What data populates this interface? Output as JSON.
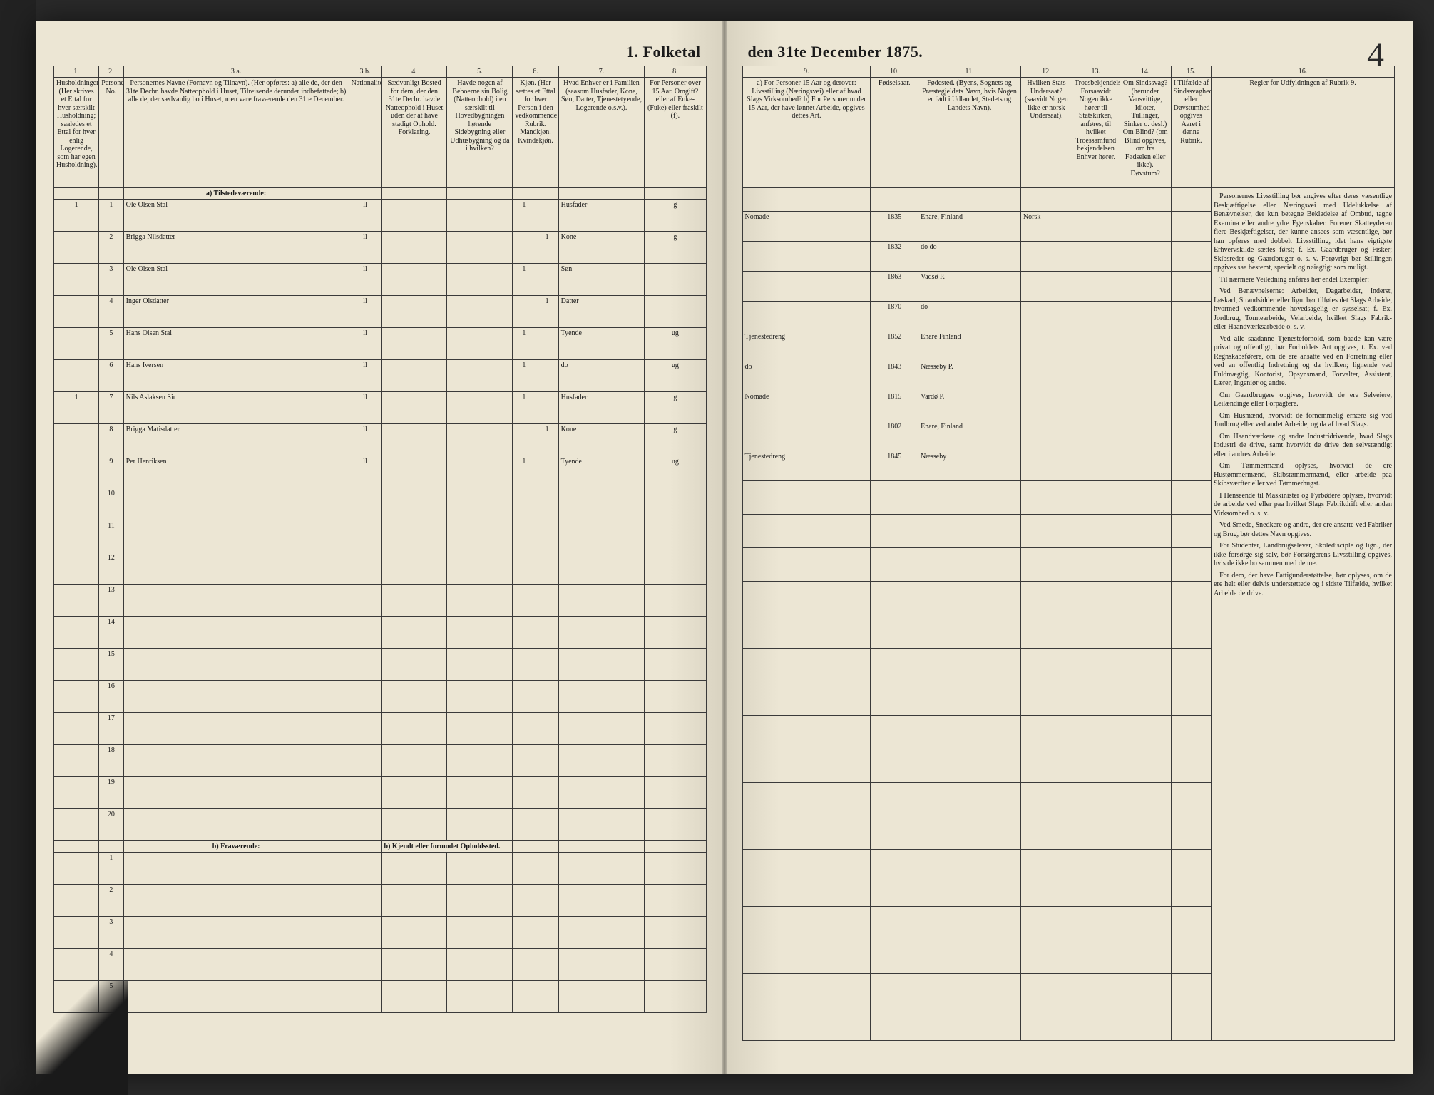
{
  "title_left": "1.  Folketal",
  "title_right": "den 31te December 1875.",
  "page_number": "4",
  "left_cols": {
    "nums": [
      "1.",
      "2.",
      "3 a.",
      "3 b.",
      "4.",
      "5.",
      "6.",
      "7.",
      "8."
    ],
    "heads": [
      "Husholdninger. (Her skrives et Ettal for hver særskilt Husholdning; saaledes et Ettal for hver enlig Logerende, som har egen Husholdning).",
      "Personernes No.",
      "Personernes Navne (Fornavn og Tilnavn). (Her opføres: a) alle de, der den 31te Decbr. havde Natteophold i Huset, Tilreisende derunder indbefattede; b) alle de, der sædvanlig bo i Huset, men vare fraværende den 31te December.",
      "Nationalitet.",
      "Sædvanligt Bosted for dem, der den 31te Decbr. havde Natteophold i Huset uden der at have stadigt Ophold. Forklaring.",
      "Havde nogen af Beboerne sin Bolig (Natteophold) i en særskilt til Hovedbygningen hørende Sidebygning eller Udhusbygning og da i hvilken?",
      "Kjøn. (Her sættes et Ettal for hver Person i den vedkommende Rubrik. Mandkjøn. Kvindekjøn.",
      "Hvad Enhver er i Familien (saasom Husfader, Kone, Søn, Datter, Tjenestetyende, Logerende o.s.v.).",
      "For Personer over 15 Aar. Omgift? eller af Enke- (Fuke) eller fraskilt (f)."
    ]
  },
  "right_cols": {
    "nums": [
      "9.",
      "10.",
      "11.",
      "12.",
      "13.",
      "14.",
      "15.",
      "16."
    ],
    "heads": [
      "a) For Personer 15 Aar og derover: Livsstilling (Næringsvei) eller af hvad Slags Virksomhed? b) For Personer under 15 Aar, der have lønnet Arbeide, opgives dettes Art.",
      "Fødselsaar.",
      "Fødested. (Byens, Sognets og Præstegjeldets Navn, hvis Nogen er født i Udlandet, Stedets og Landets Navn).",
      "Hvilken Stats Undersaat? (saavidt Nogen ikke er norsk Undersaat).",
      "Troesbekjendelse. Forsaavidt Nogen ikke hører til Statskirken, anføres, til hvilket Troessamfund bekjendelsen Enhver hører.",
      "Om Sindssvag? (herunder Vansvittige, Idioter, Tullinger, Sinker o. desl.) Om Blind? (om Blind opgives, om fra Fødselen eller ikke). Døvstum?",
      "I Tilfælde af Sindssvaghed eller Døvstumhed opgives Aaret i denne Rubrik.",
      "Regler for Udfyldningen af Rubrik 9."
    ]
  },
  "section_present": "a) Tilstedeværende:",
  "section_absent": "b) Fraværende:",
  "footnote_b": "b) Kjendt eller formodet Opholdssted.",
  "rows": [
    {
      "hh": "1",
      "no": "1",
      "name": "Ole Olsen Stal",
      "nat": "ll",
      "m": "1",
      "fam": "Husfader",
      "civ": "g",
      "occ": "Nomade",
      "year": "1835",
      "place": "Enare, Finland",
      "sub": "Norsk"
    },
    {
      "hh": "",
      "no": "2",
      "name": "Brigga Nilsdatter",
      "nat": "ll",
      "k": "1",
      "fam": "Kone",
      "civ": "g",
      "occ": "",
      "year": "1832",
      "place": "do   do",
      "sub": ""
    },
    {
      "hh": "",
      "no": "3",
      "name": "Ole Olsen Stal",
      "nat": "ll",
      "m": "1",
      "fam": "Søn",
      "civ": "",
      "occ": "",
      "year": "1863",
      "place": "Vadsø P.",
      "sub": ""
    },
    {
      "hh": "",
      "no": "4",
      "name": "Inger Olsdatter",
      "nat": "ll",
      "k": "1",
      "fam": "Datter",
      "civ": "",
      "occ": "",
      "year": "1870",
      "place": "do",
      "sub": ""
    },
    {
      "hh": "",
      "no": "5",
      "name": "Hans Olsen Stal",
      "nat": "ll",
      "m": "1",
      "fam": "Tyende",
      "civ": "ug",
      "occ": "Tjenestedreng",
      "year": "1852",
      "place": "Enare Finland",
      "sub": ""
    },
    {
      "hh": "",
      "no": "6",
      "name": "Hans Iversen",
      "nat": "ll",
      "m": "1",
      "fam": "do",
      "civ": "ug",
      "occ": "do",
      "year": "1843",
      "place": "Næsseby P.",
      "sub": ""
    },
    {
      "hh": "1",
      "no": "7",
      "name": "Nils Aslaksen Sir",
      "nat": "ll",
      "m": "1",
      "fam": "Husfader",
      "civ": "g",
      "occ": "Nomade",
      "year": "1815",
      "place": "Vardø P.",
      "sub": ""
    },
    {
      "hh": "",
      "no": "8",
      "name": "Brigga Matisdatter",
      "nat": "ll",
      "k": "1",
      "fam": "Kone",
      "civ": "g",
      "occ": "",
      "year": "1802",
      "place": "Enare, Finland",
      "sub": ""
    },
    {
      "hh": "",
      "no": "9",
      "name": "Per Henriksen",
      "nat": "ll",
      "m": "1",
      "fam": "Tyende",
      "civ": "ug",
      "occ": "Tjenestedreng",
      "year": "1845",
      "place": "Næsseby",
      "sub": ""
    }
  ],
  "empty_present": [
    "10",
    "11",
    "12",
    "13",
    "14",
    "15",
    "16",
    "17",
    "18",
    "19",
    "20"
  ],
  "empty_absent": [
    "1",
    "2",
    "3",
    "4",
    "5"
  ],
  "rules_paras": [
    "Personernes Livsstilling bør angives efter deres væsentlige Beskjæftigelse eller Næringsvei med Udelukkelse af Benævnelser, der kun betegne Bekladelse af Ombud, tagne Examina eller andre ydre Egenskaber. Forener Skatteyderen flere Beskjæftigelser, der kunne ansees som væsentlige, bør han opføres med dobbelt Livsstilling, idet hans vigtigste Erhvervskilde sættes først; f. Ex. Gaardbruger og Fisker; Skibsreder og Gaardbruger o. s. v. Forøvrigt bør Stillingen opgives saa bestemt, specielt og nøiagtigt som muligt.",
    "Til nærmere Veiledning anføres her endel Exempler:",
    "Ved Benævnelserne: Arbeider, Dagarbeider, Inderst, Løskarl, Strandsidder eller lign. bør tilføies det Slags Arbeide, hvormed vedkommende hovedsagelig er sysselsat; f. Ex. Jordbrug, Tomtearbeide, Veiarbeide, hvilket Slags Fabrik- eller Haandværksarbeide o. s. v.",
    "Ved alle saadanne Tjenesteforhold, som baade kan være privat og offentligt, bør Forholdets Art opgives, t. Ex. ved Regnskabsførere, om de ere ansatte ved en Forretning eller ved en offentlig Indretning og da hvilken; lignende ved Fuldmægtig, Kontorist, Opsynsmand, Forvalter, Assistent, Lærer, Ingeniør og andre.",
    "Om Gaardbrugere opgives, hvorvidt de ere Selveiere, Leilændinge eller Forpagtere.",
    "Om Husmænd, hvorvidt de fornemmelig ernære sig ved Jordbrug eller ved andet Arbeide, og da af hvad Slags.",
    "Om Haandværkere og andre Industridrivende, hvad Slags Industri de drive, samt hvorvidt de drive den selvstændigt eller i andres Arbeide.",
    "Om Tømmermænd oplyses, hvorvidt de ere Hustømmermænd, Skibstømmermænd, eller arbeide paa Skibsværfter eller ved Tømmerhugst.",
    "I Henseende til Maskinister og Fyrbødere oplyses, hvorvidt de arbeide ved eller paa hvilket Slags Fabrikdrift eller anden Virksomhed o. s. v.",
    "Ved Smede, Snedkere og andre, der ere ansatte ved Fabriker og Brug, bør dettes Navn opgives.",
    "For Studenter, Landbrugselever, Skoledisciple og lign., der ikke forsørge sig selv, bør Forsørgerens Livsstilling opgives, hvis de ikke bo sammen med denne.",
    "For dem, der have Fattigunderstøttelse, bør oplyses, om de ere helt eller delvis understøttede og i sidste Tilfælde, hvilket Arbeide de drive."
  ]
}
